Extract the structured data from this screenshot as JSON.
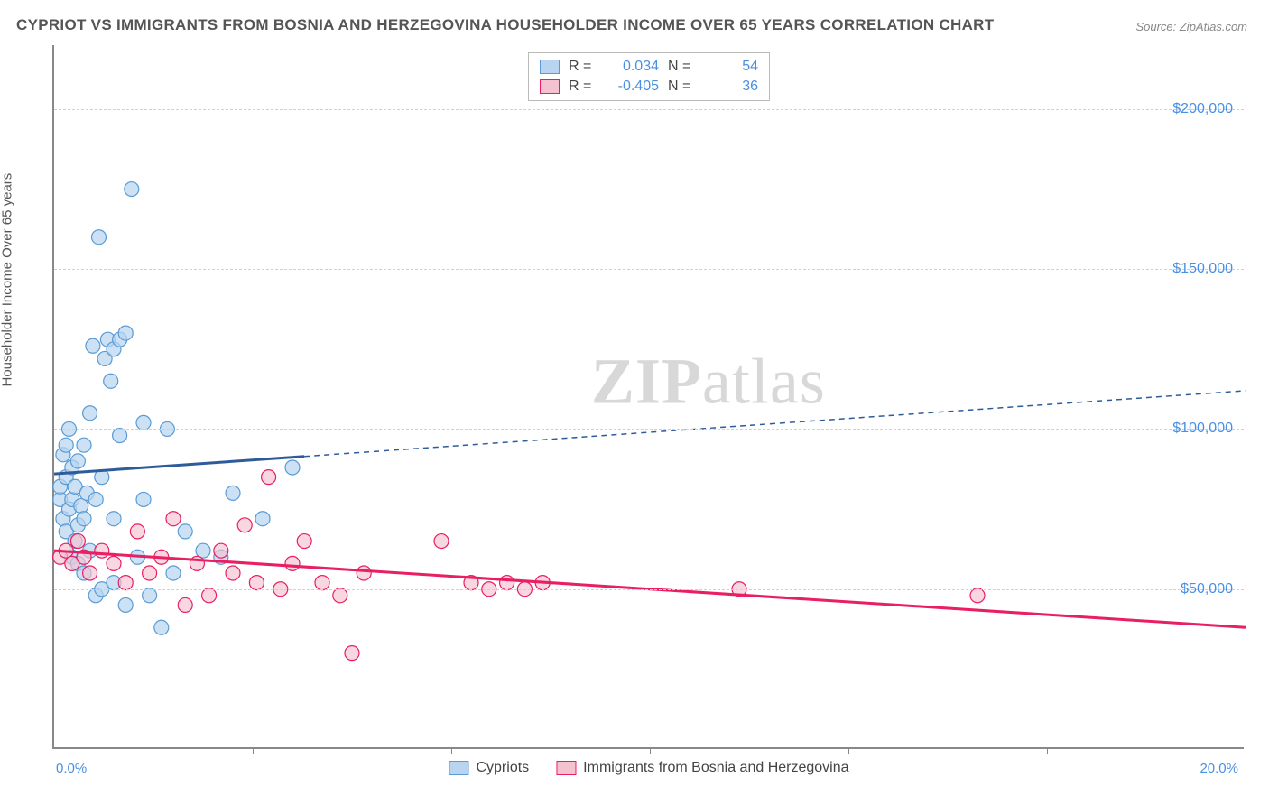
{
  "title": "CYPRIOT VS IMMIGRANTS FROM BOSNIA AND HERZEGOVINA HOUSEHOLDER INCOME OVER 65 YEARS CORRELATION CHART",
  "source": "Source: ZipAtlas.com",
  "y_axis_label": "Householder Income Over 65 years",
  "watermark_bold": "ZIP",
  "watermark_light": "atlas",
  "chart": {
    "type": "scatter",
    "xlim": [
      0,
      20
    ],
    "ylim": [
      0,
      220000
    ],
    "x_tick_labels": {
      "min": "0.0%",
      "max": "20.0%"
    },
    "y_ticks": [
      50000,
      100000,
      150000,
      200000
    ],
    "y_tick_labels": [
      "$50,000",
      "$100,000",
      "$150,000",
      "$200,000"
    ],
    "x_minor_ticks": [
      3.33,
      6.67,
      10,
      13.33,
      16.67
    ],
    "grid_color": "#d0d0d0",
    "background_color": "#ffffff",
    "axis_color": "#888888"
  },
  "series": [
    {
      "name": "Cypriots",
      "color_fill": "#b8d4f0",
      "color_stroke": "#5a9bd5",
      "line_color": "#2e5c9a",
      "marker_radius": 8,
      "marker_opacity": 0.7,
      "r_value": "0.034",
      "n_value": "54",
      "trend": {
        "x1": 0,
        "y1": 86000,
        "x2": 20,
        "y2": 112000,
        "solid_until_x": 4.2
      },
      "points": [
        [
          0.1,
          78000
        ],
        [
          0.1,
          82000
        ],
        [
          0.15,
          72000
        ],
        [
          0.15,
          92000
        ],
        [
          0.2,
          68000
        ],
        [
          0.2,
          85000
        ],
        [
          0.2,
          95000
        ],
        [
          0.25,
          75000
        ],
        [
          0.25,
          100000
        ],
        [
          0.3,
          60000
        ],
        [
          0.3,
          78000
        ],
        [
          0.3,
          88000
        ],
        [
          0.35,
          65000
        ],
        [
          0.35,
          82000
        ],
        [
          0.4,
          58000
        ],
        [
          0.4,
          70000
        ],
        [
          0.4,
          90000
        ],
        [
          0.45,
          76000
        ],
        [
          0.5,
          55000
        ],
        [
          0.5,
          72000
        ],
        [
          0.5,
          95000
        ],
        [
          0.55,
          80000
        ],
        [
          0.6,
          62000
        ],
        [
          0.6,
          105000
        ],
        [
          0.65,
          126000
        ],
        [
          0.7,
          48000
        ],
        [
          0.7,
          78000
        ],
        [
          0.75,
          160000
        ],
        [
          0.8,
          50000
        ],
        [
          0.8,
          85000
        ],
        [
          0.85,
          122000
        ],
        [
          0.9,
          128000
        ],
        [
          0.95,
          115000
        ],
        [
          1.0,
          52000
        ],
        [
          1.0,
          72000
        ],
        [
          1.0,
          125000
        ],
        [
          1.1,
          98000
        ],
        [
          1.1,
          128000
        ],
        [
          1.2,
          45000
        ],
        [
          1.2,
          130000
        ],
        [
          1.3,
          175000
        ],
        [
          1.4,
          60000
        ],
        [
          1.5,
          78000
        ],
        [
          1.5,
          102000
        ],
        [
          1.6,
          48000
        ],
        [
          1.8,
          38000
        ],
        [
          1.9,
          100000
        ],
        [
          2.0,
          55000
        ],
        [
          2.2,
          68000
        ],
        [
          2.5,
          62000
        ],
        [
          2.8,
          60000
        ],
        [
          3.0,
          80000
        ],
        [
          3.5,
          72000
        ],
        [
          4.0,
          88000
        ]
      ]
    },
    {
      "name": "Immigrants from Bosnia and Herzegovina",
      "color_fill": "#f5c2d0",
      "color_stroke": "#e91e63",
      "line_color": "#e91e63",
      "marker_radius": 8,
      "marker_opacity": 0.65,
      "r_value": "-0.405",
      "n_value": "36",
      "trend": {
        "x1": 0,
        "y1": 62000,
        "x2": 20,
        "y2": 38000,
        "solid_until_x": 20
      },
      "points": [
        [
          0.1,
          60000
        ],
        [
          0.2,
          62000
        ],
        [
          0.3,
          58000
        ],
        [
          0.4,
          65000
        ],
        [
          0.5,
          60000
        ],
        [
          0.6,
          55000
        ],
        [
          0.8,
          62000
        ],
        [
          1.0,
          58000
        ],
        [
          1.2,
          52000
        ],
        [
          1.4,
          68000
        ],
        [
          1.6,
          55000
        ],
        [
          1.8,
          60000
        ],
        [
          2.0,
          72000
        ],
        [
          2.2,
          45000
        ],
        [
          2.4,
          58000
        ],
        [
          2.6,
          48000
        ],
        [
          2.8,
          62000
        ],
        [
          3.0,
          55000
        ],
        [
          3.2,
          70000
        ],
        [
          3.4,
          52000
        ],
        [
          3.6,
          85000
        ],
        [
          3.8,
          50000
        ],
        [
          4.0,
          58000
        ],
        [
          4.2,
          65000
        ],
        [
          4.5,
          52000
        ],
        [
          4.8,
          48000
        ],
        [
          5.0,
          30000
        ],
        [
          5.2,
          55000
        ],
        [
          6.5,
          65000
        ],
        [
          7.0,
          52000
        ],
        [
          7.3,
          50000
        ],
        [
          7.6,
          52000
        ],
        [
          7.9,
          50000
        ],
        [
          8.2,
          52000
        ],
        [
          11.5,
          50000
        ],
        [
          15.5,
          48000
        ]
      ]
    }
  ],
  "legend_bottom": [
    {
      "label": "Cypriots",
      "fill": "#b8d4f0",
      "stroke": "#5a9bd5"
    },
    {
      "label": "Immigrants from Bosnia and Herzegovina",
      "fill": "#f5c2d0",
      "stroke": "#e91e63"
    }
  ]
}
